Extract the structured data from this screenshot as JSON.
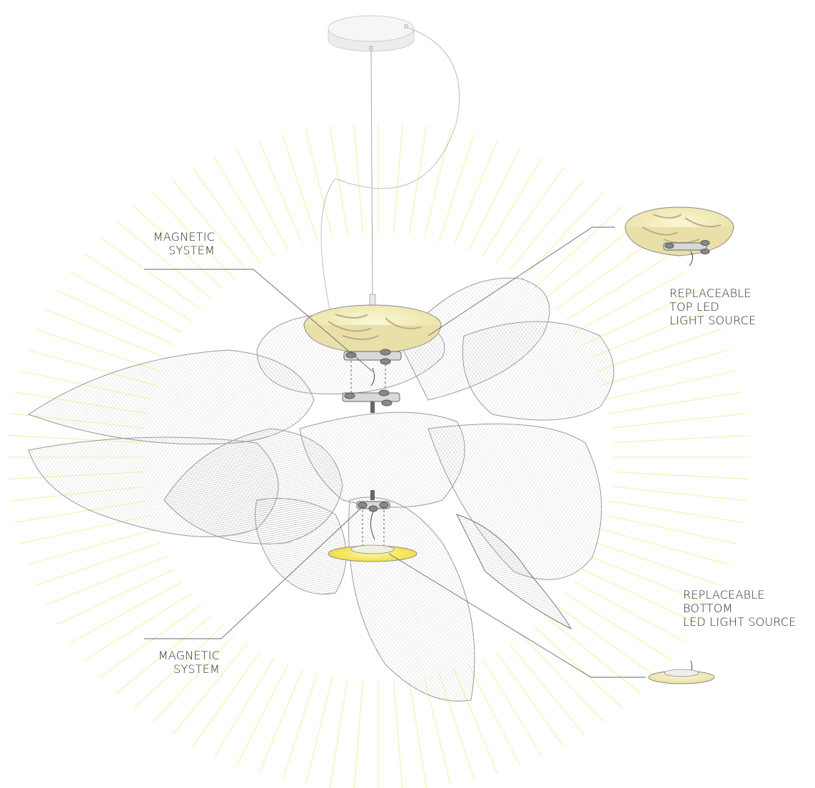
{
  "labels": {
    "magnetic_top": [
      "MAGNETIC",
      "SYSTEM"
    ],
    "top_led": [
      "REPLACEABLE",
      "TOP LED",
      "LIGHT SOURCE"
    ],
    "bottom_led": [
      "REPLACEABLE",
      "BOTTOM",
      "LED LIGHT SOURCE"
    ],
    "magnetic_bottom": [
      "MAGNETIC",
      "SYSTEM"
    ]
  },
  "colors": {
    "background": "#ffffff",
    "ray": "#f2ef9e",
    "led_top": "#f4efbe",
    "led_bottom": "#f6ea4a",
    "petal_stroke": "#9a9a9a",
    "petal_fill": "#f4f4f4",
    "callout": "#6a6a6a",
    "text": "#2b2b2b"
  }
}
